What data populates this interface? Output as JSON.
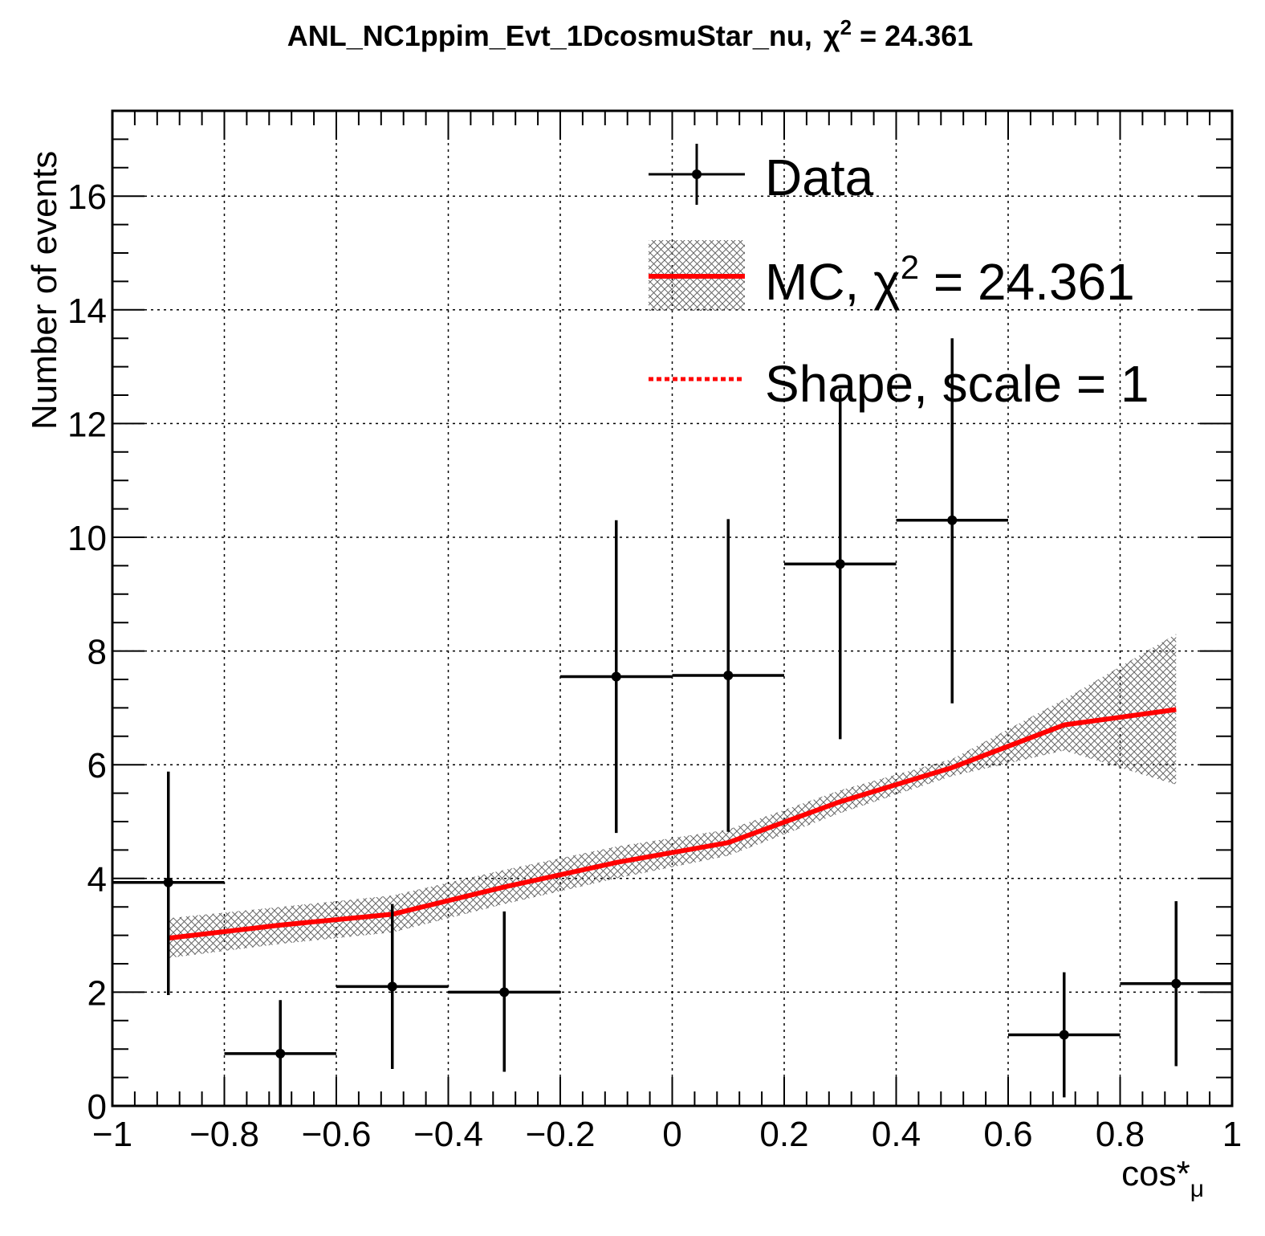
{
  "title": {
    "main": "ANL_NC1ppim_Evt_1DcosmuStar_nu,",
    "chi_symbol": "χ",
    "chi_exp": "2",
    "chi_value": " = 24.361"
  },
  "chart_data": {
    "type": "line",
    "xlabel": "cos*",
    "xlabel_sub": "μ",
    "ylabel": "Number of events",
    "xlim": [
      -1,
      1
    ],
    "ylim": [
      0,
      17.5
    ],
    "grid": true,
    "legend_position": "top-right",
    "x_ticks": [
      -1,
      -0.8,
      -0.6,
      -0.4,
      -0.2,
      0,
      0.2,
      0.4,
      0.6,
      0.8,
      1
    ],
    "x_tick_labels": [
      "−1",
      "−0.8",
      "−0.6",
      "−0.4",
      "−0.2",
      "0",
      "0.2",
      "0.4",
      "0.6",
      "0.8",
      "1"
    ],
    "y_ticks": [
      0,
      2,
      4,
      6,
      8,
      10,
      12,
      14,
      16
    ],
    "y_tick_labels": [
      "0",
      "2",
      "4",
      "6",
      "8",
      "10",
      "12",
      "14",
      "16"
    ],
    "data": {
      "name": "Data",
      "color": "#000000",
      "points": [
        {
          "x": -0.9,
          "y": 3.93,
          "xerr": 0.1,
          "ylow": 1.95,
          "yhigh": 5.88
        },
        {
          "x": -0.7,
          "y": 0.92,
          "xerr": 0.1,
          "ylow": 0.0,
          "yhigh": 1.86
        },
        {
          "x": -0.5,
          "y": 2.1,
          "xerr": 0.1,
          "ylow": 0.65,
          "yhigh": 3.55
        },
        {
          "x": -0.3,
          "y": 2.0,
          "xerr": 0.1,
          "ylow": 0.6,
          "yhigh": 3.42
        },
        {
          "x": -0.1,
          "y": 7.55,
          "xerr": 0.1,
          "ylow": 4.8,
          "yhigh": 10.3
        },
        {
          "x": 0.1,
          "y": 7.57,
          "xerr": 0.1,
          "ylow": 4.82,
          "yhigh": 10.32
        },
        {
          "x": 0.3,
          "y": 9.53,
          "xerr": 0.1,
          "ylow": 6.45,
          "yhigh": 12.6
        },
        {
          "x": 0.5,
          "y": 10.3,
          "xerr": 0.1,
          "ylow": 7.08,
          "yhigh": 13.5
        },
        {
          "x": 0.7,
          "y": 1.25,
          "xerr": 0.1,
          "ylow": 0.15,
          "yhigh": 2.35
        },
        {
          "x": 0.9,
          "y": 2.15,
          "xerr": 0.1,
          "ylow": 0.7,
          "yhigh": 3.6
        }
      ]
    },
    "mc": {
      "name": "MC",
      "color": "#ff0000",
      "x": [
        -0.9,
        -0.7,
        -0.5,
        -0.3,
        -0.1,
        0.1,
        0.3,
        0.5,
        0.7,
        0.9
      ],
      "y": [
        2.95,
        3.18,
        3.37,
        3.85,
        4.28,
        4.63,
        5.35,
        5.95,
        6.7,
        6.97
      ],
      "band_low": [
        2.6,
        2.85,
        3.05,
        3.55,
        4.0,
        4.4,
        5.15,
        5.8,
        6.25,
        5.65
      ],
      "band_high": [
        3.3,
        3.5,
        3.7,
        4.15,
        4.56,
        4.86,
        5.55,
        6.1,
        7.15,
        8.3
      ]
    },
    "shape": {
      "name": "Shape",
      "color": "#ff0000",
      "y": [
        2.95,
        3.18,
        3.37,
        3.85,
        4.28,
        4.63,
        5.35,
        5.95,
        6.7,
        6.97
      ]
    }
  },
  "legend": {
    "data_label": "Data",
    "mc_label_prefix": "MC, ",
    "mc_chi_symbol": "χ",
    "mc_chi_exp": "2",
    "mc_chi_value": " = 24.361",
    "shape_label": "Shape, scale = 1"
  }
}
